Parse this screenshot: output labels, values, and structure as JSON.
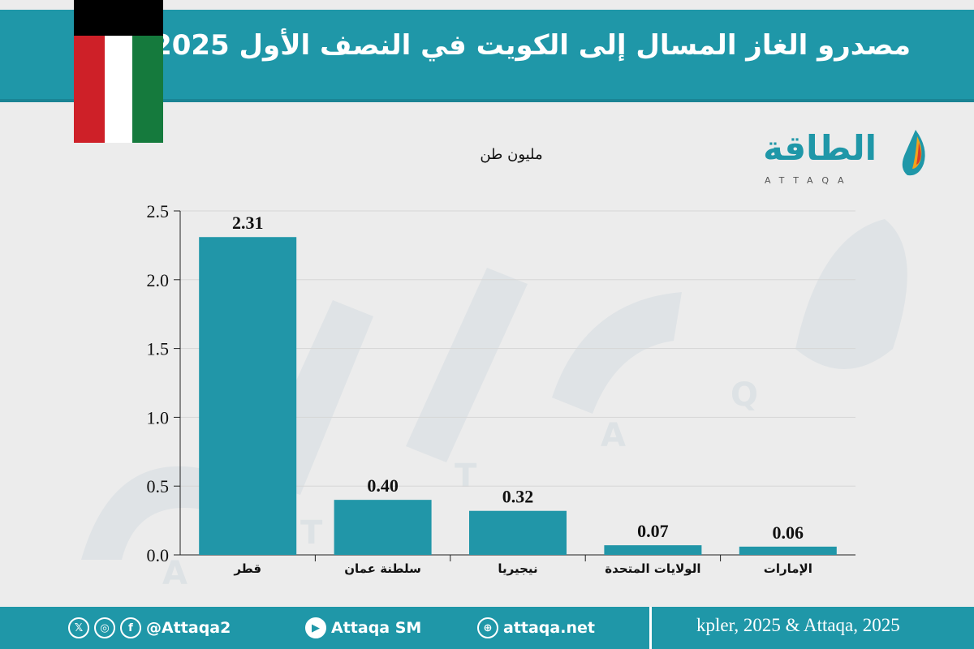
{
  "header": {
    "title": "مصدرو الغاز المسال إلى الكويت في النصف الأول 2025"
  },
  "logo": {
    "arabic": "الطاقة",
    "latin": "ATTAQA"
  },
  "colors": {
    "brand": "#1f97a8",
    "bar": "#2196a8",
    "flag_green": "#157a3d",
    "flag_red": "#ce2028",
    "flag_black": "#000000"
  },
  "footer": {
    "handle": "@Attaqa2",
    "youtube": "Attaqa SM",
    "website": "attaqa.net",
    "source": "kpler, 2025 & Attaqa, 2025",
    "icons": [
      "x-icon",
      "instagram-icon",
      "facebook-icon",
      "youtube-icon",
      "globe-icon"
    ]
  },
  "chart_data": {
    "type": "bar",
    "title": "",
    "ylabel": "مليون طن",
    "categories": [
      "قطر",
      "سلطنة عمان",
      "نيجيريا",
      "الولايات المتحدة",
      "الإمارات"
    ],
    "values": [
      2.31,
      0.4,
      0.32,
      0.07,
      0.06
    ],
    "value_labels": [
      "2.31",
      "0.40",
      "0.32",
      "0.07",
      "0.06"
    ],
    "ylim": [
      0,
      2.5
    ],
    "yticks": [
      0.0,
      0.5,
      1.0,
      1.5,
      2.0,
      2.5
    ],
    "ytick_labels": [
      "0.0",
      "0.5",
      "1.0",
      "1.5",
      "2.0",
      "2.5"
    ],
    "grid": true,
    "legend": "none"
  }
}
